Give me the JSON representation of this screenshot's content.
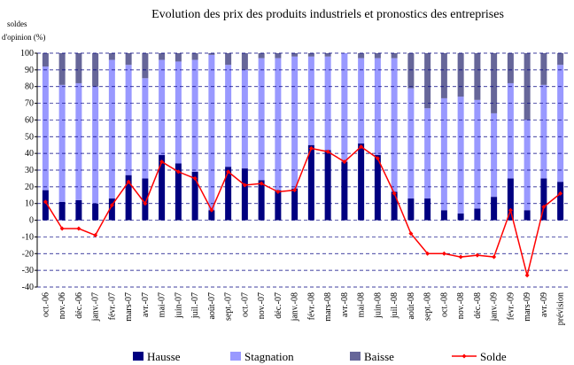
{
  "chart_data": {
    "type": "stacked_bar_line",
    "title": "Evolution des prix des produits industriels et pronostics des entreprises",
    "y_label": [
      "soldes",
      "d'opinion (%)"
    ],
    "categories": [
      "oct.-06",
      "nov.-06",
      "déc.-06",
      "janv.-07",
      "févr.-07",
      "mars-07",
      "avr.-07",
      "mai-07",
      "juin-07",
      "juil.-07",
      "août-07",
      "sept.-07",
      "oct.-07",
      "nov.-07",
      "déc.-07",
      "janv.-08",
      "févr.-08",
      "mars-08",
      "avr.-08",
      "mai-08",
      "juin-08",
      "juil.-08",
      "août-08",
      "sept.-08",
      "oct.-08",
      "nov.-08",
      "déc.-08",
      "janv.-09",
      "févr.-09",
      "mars-09",
      "avr.-09",
      "prévision"
    ],
    "series": [
      {
        "name": "Hausse",
        "color": "#000080",
        "kind": "bar",
        "values": [
          18,
          11,
          12,
          10,
          13,
          27,
          25,
          39,
          34,
          29,
          6,
          32,
          31,
          24,
          18,
          19,
          45,
          42,
          35,
          46,
          39,
          17,
          13,
          13,
          6,
          4,
          7,
          14,
          25,
          6,
          25,
          23
        ]
      },
      {
        "name": "Stagnation",
        "color": "#9999ff",
        "kind": "bar",
        "values": [
          74,
          70,
          70,
          70,
          83,
          66,
          60,
          57,
          61,
          67,
          93,
          61,
          59,
          73,
          79,
          79,
          53,
          56,
          65,
          51,
          58,
          80,
          66,
          54,
          67,
          70,
          65,
          50,
          57,
          54,
          56,
          70
        ]
      },
      {
        "name": "Baisse",
        "color": "#666699",
        "kind": "bar",
        "values": [
          8,
          19,
          18,
          20,
          4,
          7,
          15,
          4,
          5,
          4,
          1,
          7,
          10,
          3,
          3,
          2,
          2,
          2,
          0,
          3,
          3,
          3,
          21,
          33,
          27,
          26,
          28,
          36,
          18,
          40,
          19,
          7
        ]
      },
      {
        "name": "Solde",
        "color": "#ff0000",
        "kind": "line",
        "values": [
          11,
          -5,
          -5,
          -9,
          9,
          23,
          10,
          35,
          29,
          25,
          6,
          29,
          21,
          22,
          17,
          18,
          43,
          41,
          35,
          44,
          37,
          16,
          -8,
          -20,
          -20,
          -22,
          -21,
          -22,
          6,
          -33,
          8,
          16
        ]
      }
    ],
    "ylim": [
      -40,
      100
    ],
    "yticks": [
      -40,
      -30,
      -20,
      -10,
      0,
      10,
      20,
      30,
      40,
      50,
      60,
      70,
      80,
      90,
      100
    ],
    "grid": true,
    "legend": "bottom"
  }
}
